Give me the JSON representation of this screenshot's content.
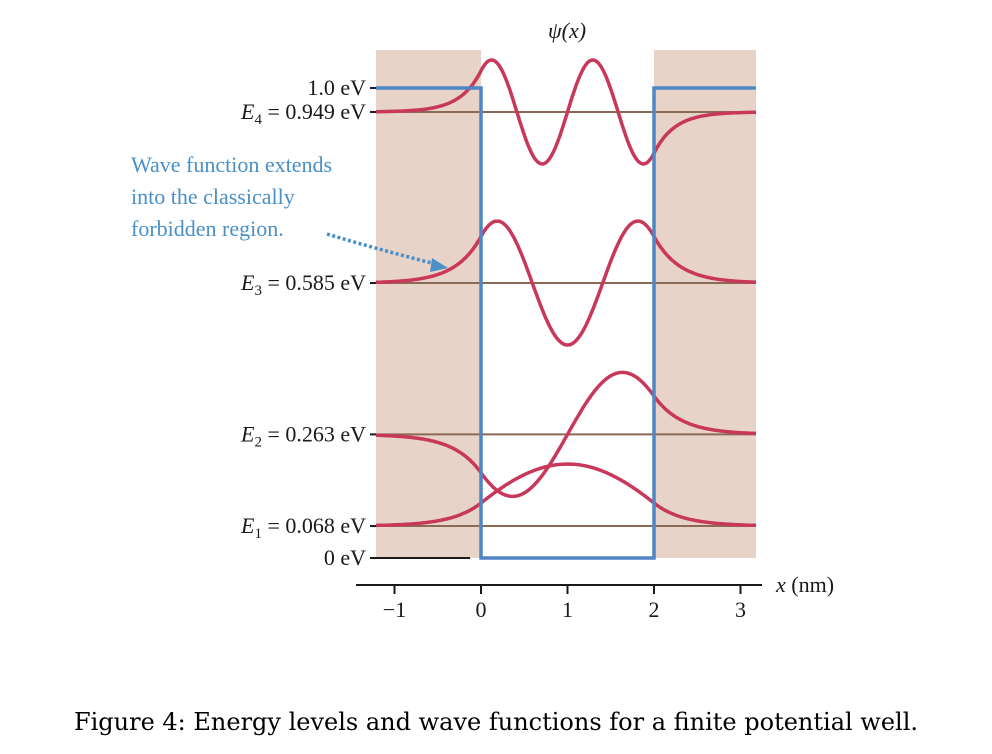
{
  "figure": {
    "title": "ψ(x)",
    "caption": "Figure 4: Energy levels and wave functions for a finite potential well.",
    "annotation": {
      "lines": [
        "Wave function extends",
        "into the classically",
        "forbidden region."
      ]
    }
  },
  "chart_data": {
    "type": "line",
    "x_axis": {
      "label": "x (nm)",
      "range": [
        -1.2,
        3.2
      ],
      "ticks": [
        -1,
        0,
        1,
        2,
        3
      ],
      "tick_labels": [
        "−1",
        "0",
        "1",
        "2",
        "3"
      ]
    },
    "energy_labels": [
      {
        "name": "1.0 eV",
        "value": 1.0
      },
      {
        "name": "E4 = 0.949 eV",
        "value": 0.949
      },
      {
        "name": "E3 = 0.585 eV",
        "value": 0.585
      },
      {
        "name": "E2 = 0.263 eV",
        "value": 0.263
      },
      {
        "name": "E1 = 0.068 eV",
        "value": 0.068
      },
      {
        "name": "0 eV",
        "value": 0.0
      }
    ],
    "energy_levels": [
      {
        "n": 1,
        "label_html": [
          "E",
          "1",
          " = 0.068 eV"
        ],
        "E": 0.068
      },
      {
        "n": 2,
        "label_html": [
          "E",
          "2",
          " = 0.263 eV"
        ],
        "E": 0.263
      },
      {
        "n": 3,
        "label_html": [
          "E",
          "3",
          " = 0.585 eV"
        ],
        "E": 0.585
      },
      {
        "n": 4,
        "label_html": [
          "E",
          "4",
          " = 0.949 eV"
        ],
        "E": 0.949
      }
    ],
    "well": {
      "x_min": 0,
      "x_max": 2,
      "V0_eV": 1.0,
      "bottom_eV": 0
    },
    "labels": {
      "top": "1.0 eV",
      "zero": "0 eV"
    },
    "colors": {
      "wave": "#c8385a",
      "well": "#4f86c6",
      "level": "#8b6a55",
      "forbidden": "#e8d3c8",
      "annotation": "#4a90c8",
      "axis": "#1a1a1a"
    }
  }
}
